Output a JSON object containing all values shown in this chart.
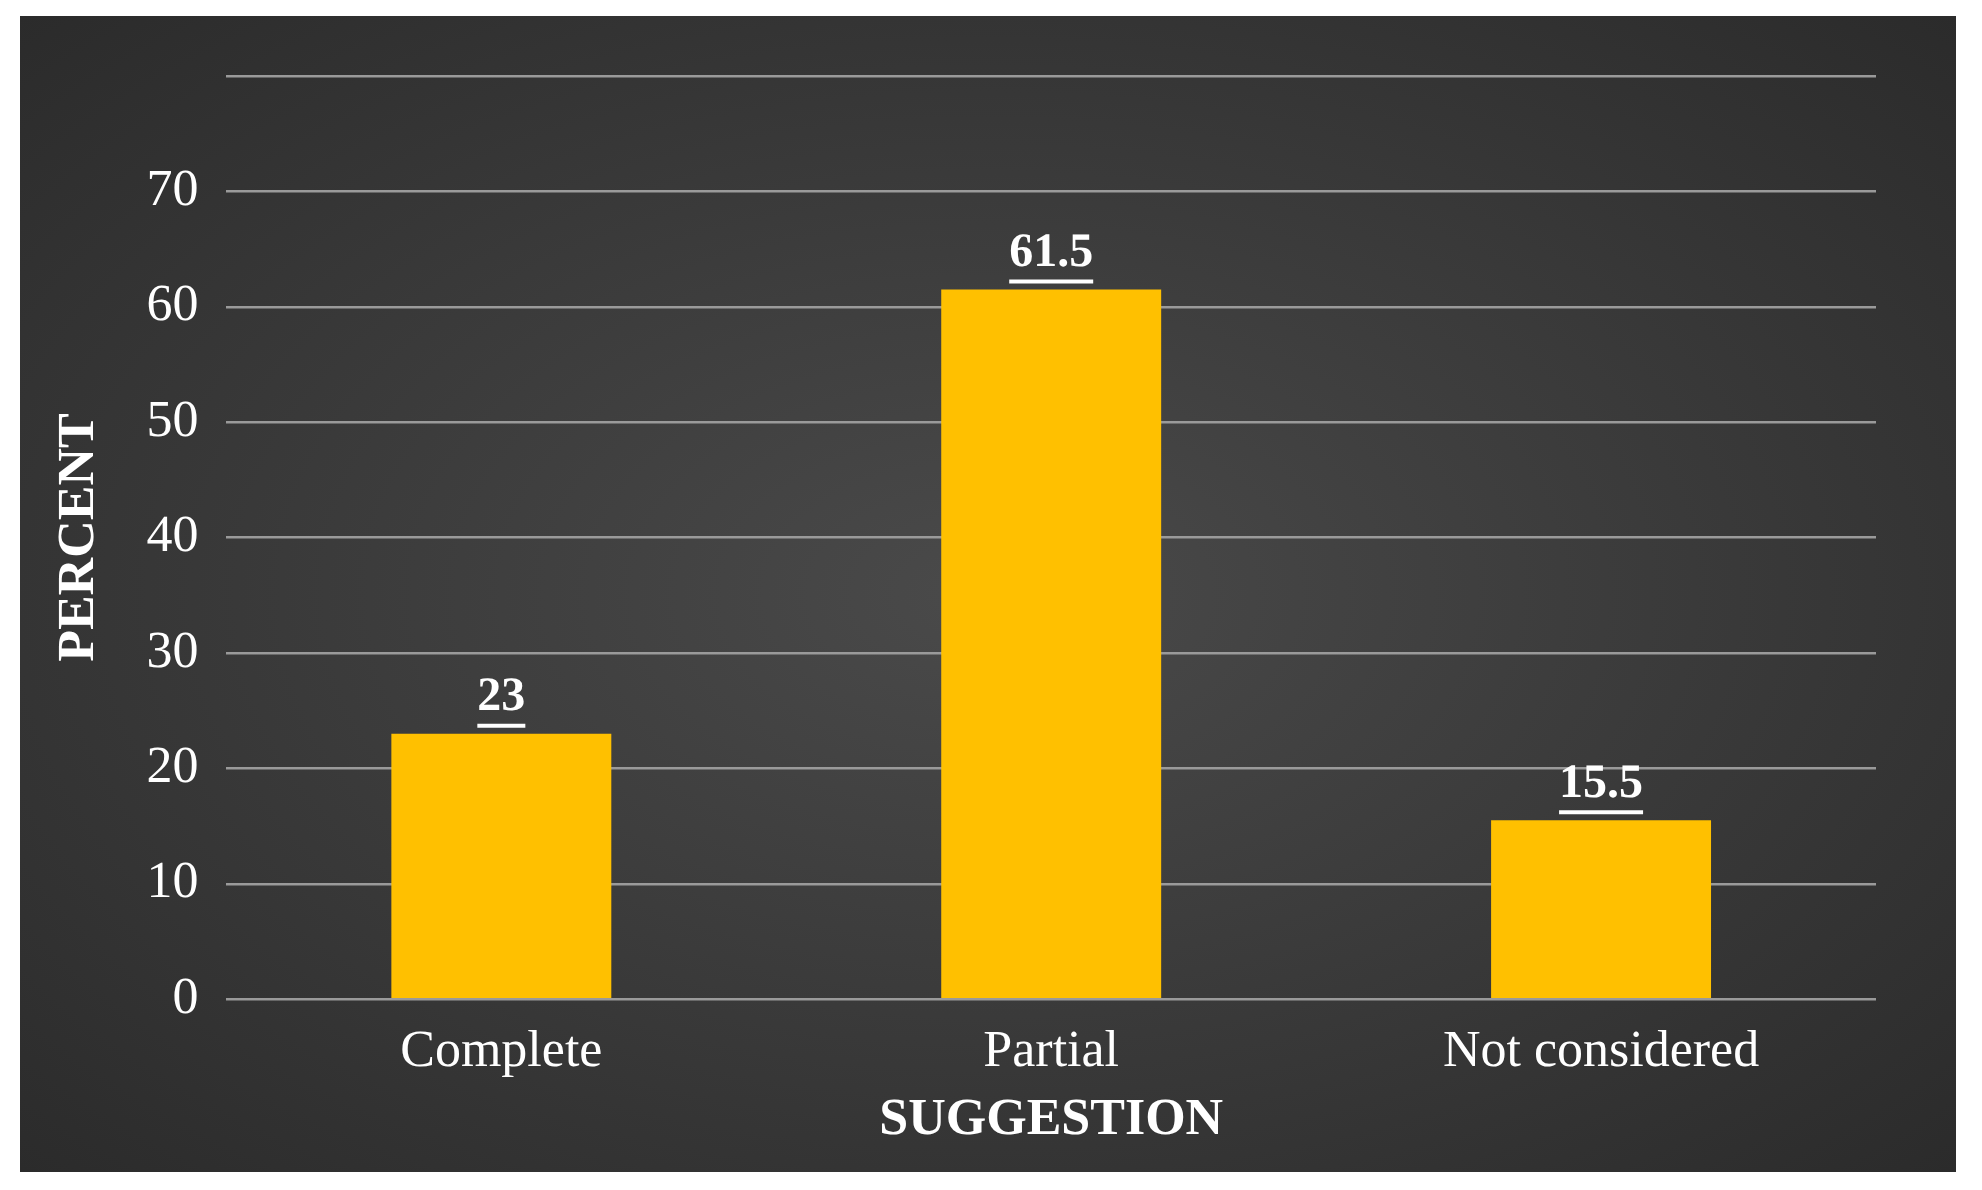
{
  "chart_data": {
    "type": "bar",
    "xlabel": "SUGGESTION",
    "ylabel": "PERCENT",
    "categories": [
      "Complete",
      "Partial",
      "Not considered"
    ],
    "values": [
      23,
      61.5,
      15.5
    ],
    "color": "#ffc000",
    "ylim": [
      0,
      80
    ],
    "yticks": [
      0,
      10,
      20,
      30,
      40,
      50,
      60,
      70,
      {
        "value": 80,
        "label": null
      }
    ],
    "grid": "y",
    "data_labels": true
  }
}
